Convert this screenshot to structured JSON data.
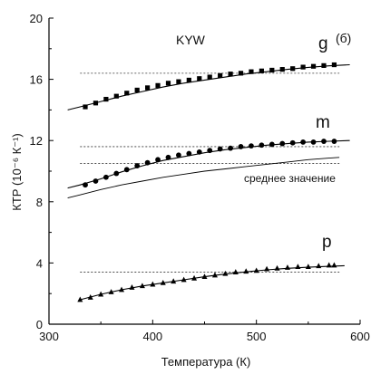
{
  "chart_data": {
    "type": "scatter",
    "title": "",
    "xlabel": "Температура (К)",
    "ylabel": "КТР (10⁻⁶ К⁻¹)",
    "xlim": [
      300,
      600
    ],
    "ylim": [
      0,
      20
    ],
    "x_ticks": [
      "300",
      "400",
      "500",
      "600"
    ],
    "y_ticks": [
      "0",
      "4",
      "8",
      "12",
      "16",
      "20"
    ],
    "annotations": {
      "crystal": "KYW",
      "panel": "(б)",
      "mean": "среднее значение"
    },
    "series": [
      {
        "name": "g",
        "marker": "square",
        "x": [
          335,
          345,
          355,
          365,
          375,
          385,
          395,
          405,
          415,
          425,
          435,
          445,
          455,
          465,
          475,
          485,
          495,
          505,
          515,
          525,
          535,
          545,
          555,
          565,
          575
        ],
        "y": [
          14.2,
          14.45,
          14.7,
          14.9,
          15.1,
          15.3,
          15.45,
          15.6,
          15.75,
          15.85,
          15.95,
          16.05,
          16.15,
          16.25,
          16.35,
          16.4,
          16.5,
          16.55,
          16.6,
          16.65,
          16.7,
          16.8,
          16.85,
          16.9,
          16.95
        ],
        "fit_x": [
          318,
          330,
          350,
          370,
          390,
          410,
          430,
          450,
          470,
          490,
          510,
          530,
          550,
          570,
          590
        ],
        "fit_y": [
          14.0,
          14.2,
          14.55,
          14.9,
          15.2,
          15.5,
          15.75,
          15.95,
          16.15,
          16.35,
          16.5,
          16.65,
          16.78,
          16.88,
          16.95
        ],
        "reference_lines": [
          16.4
        ]
      },
      {
        "name": "m",
        "marker": "circle",
        "x": [
          335,
          345,
          355,
          365,
          375,
          385,
          395,
          405,
          415,
          425,
          435,
          445,
          455,
          465,
          475,
          485,
          495,
          505,
          515,
          525,
          535,
          545,
          555,
          565,
          575
        ],
        "y": [
          9.1,
          9.35,
          9.6,
          9.85,
          10.1,
          10.35,
          10.55,
          10.75,
          10.9,
          11.05,
          11.15,
          11.25,
          11.35,
          11.45,
          11.5,
          11.6,
          11.65,
          11.7,
          11.75,
          11.8,
          11.85,
          11.9,
          11.9,
          11.95,
          11.95
        ],
        "fit_x": [
          318,
          330,
          350,
          370,
          390,
          410,
          430,
          450,
          470,
          490,
          510,
          530,
          550,
          570,
          590
        ],
        "fit_y": [
          8.9,
          9.1,
          9.5,
          9.95,
          10.35,
          10.7,
          10.95,
          11.2,
          11.4,
          11.55,
          11.7,
          11.8,
          11.9,
          11.95,
          12.0
        ],
        "reference_lines": [
          11.6,
          10.5
        ]
      },
      {
        "name": "среднее значение",
        "marker": "none",
        "x": [],
        "y": [],
        "fit_x": [
          318,
          330,
          350,
          370,
          390,
          410,
          430,
          450,
          470,
          490,
          510,
          530,
          550,
          570,
          580
        ],
        "fit_y": [
          8.25,
          8.45,
          8.8,
          9.1,
          9.35,
          9.6,
          9.8,
          10.0,
          10.15,
          10.3,
          10.45,
          10.6,
          10.75,
          10.85,
          10.9
        ],
        "reference_lines": []
      },
      {
        "name": "p",
        "marker": "triangle",
        "x": [
          330,
          340,
          350,
          360,
          370,
          380,
          390,
          400,
          410,
          420,
          430,
          440,
          450,
          460,
          470,
          480,
          490,
          500,
          510,
          520,
          530,
          540,
          550,
          560,
          570,
          575
        ],
        "y": [
          1.6,
          1.75,
          1.95,
          2.1,
          2.25,
          2.4,
          2.5,
          2.6,
          2.7,
          2.8,
          2.9,
          3.0,
          3.1,
          3.2,
          3.3,
          3.4,
          3.45,
          3.5,
          3.6,
          3.65,
          3.7,
          3.75,
          3.75,
          3.8,
          3.85,
          3.85
        ],
        "fit_x": [
          330,
          350,
          370,
          390,
          410,
          430,
          450,
          470,
          490,
          510,
          530,
          550,
          570,
          585
        ],
        "fit_y": [
          1.6,
          1.95,
          2.25,
          2.5,
          2.7,
          2.9,
          3.1,
          3.28,
          3.42,
          3.55,
          3.65,
          3.72,
          3.78,
          3.82
        ],
        "reference_lines": [
          3.4
        ]
      }
    ],
    "grid": false,
    "legend": "inline-labels"
  }
}
